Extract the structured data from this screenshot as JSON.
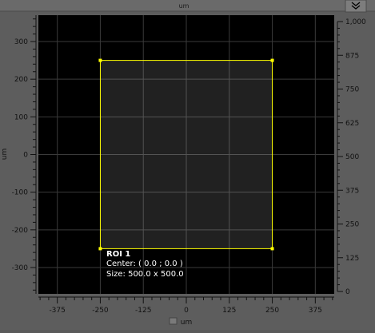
{
  "header": {
    "axis_label_top": "um"
  },
  "panel": {
    "collapse_icon": "double-chevron-down-icon"
  },
  "axes": {
    "x_label": "um",
    "y_label": "um",
    "x_range": [
      -430,
      430
    ],
    "y_range": [
      -370,
      370
    ],
    "x_ticks": [
      -375,
      -250,
      -125,
      0,
      125,
      250,
      375
    ],
    "x_tick_labels": [
      "-375",
      "-250",
      "-125",
      "0",
      "125",
      "250",
      "375"
    ],
    "y_ticks": [
      -300,
      -200,
      -100,
      0,
      100,
      200,
      300
    ],
    "y_tick_labels": [
      "-300",
      "-200",
      "-100",
      "0",
      "100",
      "200",
      "300"
    ],
    "right_range": [
      0,
      1000
    ],
    "right_ticks": [
      0,
      125,
      250,
      375,
      500,
      625,
      750,
      875,
      1000
    ],
    "right_tick_labels": [
      "0",
      "125",
      "250",
      "375",
      "500",
      "625",
      "750",
      "875",
      "1,000"
    ],
    "grid": true
  },
  "roi": {
    "name": "ROI 1",
    "center_text": "Center: ( 0.0 ; 0.0 )",
    "size_text": "Size: 500.0 x 500.0",
    "center_x": 0,
    "center_y": 0,
    "width": 500,
    "height": 500,
    "color": "#ffff00"
  },
  "colors": {
    "plot_bg": "#000000",
    "frame_bg": "#5d5d5d",
    "grid": "#3a3a3a",
    "text": "#ffffff",
    "axis_text": "#000000"
  }
}
